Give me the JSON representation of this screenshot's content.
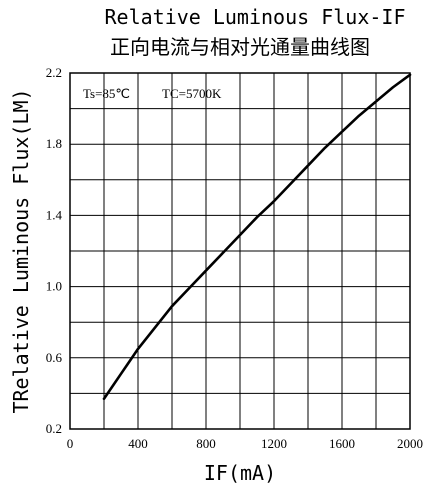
{
  "chart_data": {
    "type": "line",
    "title": "Relative Luminous Flux-IF",
    "subtitle": "正向电流与相对光通量曲线图",
    "xlabel": "IF(mA)",
    "ylabel": "TRelative Luminous Flux(LM)",
    "xlim": [
      0,
      2000
    ],
    "ylim": [
      0.2,
      2.2
    ],
    "x_ticks": [
      0,
      400,
      800,
      1200,
      1600,
      2000
    ],
    "y_ticks": [
      0.2,
      0.6,
      1.0,
      1.4,
      1.8,
      2.2
    ],
    "x_tick_labels": [
      "0",
      "400",
      "800",
      "1200",
      "1600",
      "2000"
    ],
    "y_tick_labels": [
      "0.2",
      "0.6",
      "1.0",
      "1.4",
      "1.8",
      "2.2"
    ],
    "grid": true,
    "grid_minor": {
      "x_step": 200,
      "y_step": 0.2
    },
    "annotations": [
      "Ts=85℃",
      "TC=5700K"
    ],
    "series": [
      {
        "x": [
          200,
          300,
          400,
          500,
          600,
          700,
          800,
          900,
          1000,
          1100,
          1200,
          1300,
          1400,
          1500,
          1600,
          1700,
          1800,
          1900,
          2000
        ],
        "y": [
          0.37,
          0.51,
          0.65,
          0.77,
          0.89,
          0.99,
          1.09,
          1.19,
          1.29,
          1.39,
          1.48,
          1.58,
          1.68,
          1.78,
          1.87,
          1.96,
          2.04,
          2.12,
          2.19
        ]
      }
    ]
  }
}
